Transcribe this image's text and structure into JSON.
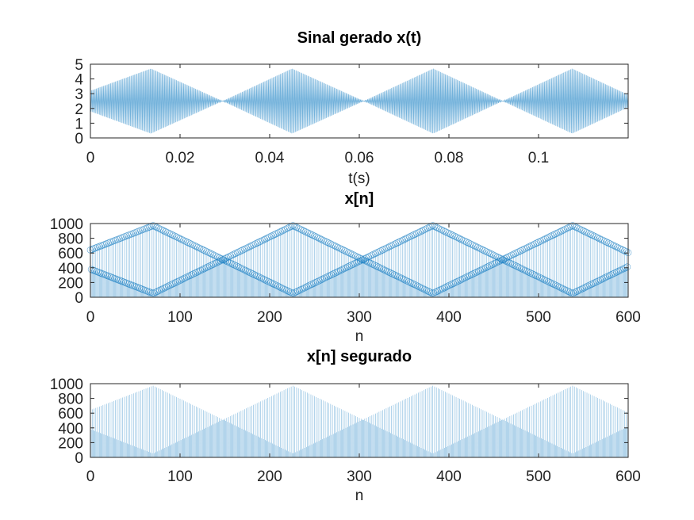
{
  "colors": {
    "signal": "#0072bd",
    "axis": "#262626",
    "background": "#ffffff"
  },
  "chart_data": [
    {
      "type": "line",
      "title": "Sinal gerado x(t)",
      "xlabel": "t(s)",
      "ylabel": "",
      "xlim": [
        0,
        0.12
      ],
      "ylim": [
        0,
        5
      ],
      "grid": false,
      "xticks": [
        0,
        0.02,
        0.04,
        0.06,
        0.08,
        0.1
      ],
      "xtick_labels": [
        "0",
        "0.02",
        "0.04",
        "0.06",
        "0.08",
        "0.1"
      ],
      "yticks": [
        0,
        1,
        2,
        3,
        4,
        5
      ],
      "ytick_labels": [
        "0",
        "1",
        "2",
        "3",
        "4",
        "5"
      ],
      "signal": {
        "description_values": "rapid oscillation around 2.5 with triangular envelope",
        "center": 2.5,
        "envelope_max_amplitude": 2.2,
        "envelope_peaks_x": [
          0.0135,
          0.045,
          0.0765,
          0.1075
        ],
        "envelope_nulls_x": [
          0.0295,
          0.061,
          0.092
        ],
        "start_amplitude": 0.7,
        "x_end": 0.12
      }
    },
    {
      "type": "stem",
      "title": "x[n]",
      "xlabel": "n",
      "ylabel": "",
      "xlim": [
        0,
        600
      ],
      "ylim": [
        0,
        1000
      ],
      "grid": false,
      "xticks": [
        0,
        100,
        200,
        300,
        400,
        500,
        600
      ],
      "xtick_labels": [
        "0",
        "100",
        "200",
        "300",
        "400",
        "500",
        "600"
      ],
      "yticks": [
        0,
        200,
        400,
        600,
        800,
        1000
      ],
      "ytick_labels": [
        "0",
        "200",
        "400",
        "600",
        "800",
        "1000"
      ],
      "signal": {
        "center": 512,
        "envelope_max_amplitude": 460,
        "envelope_peaks_n": [
          70,
          226,
          382,
          538
        ],
        "envelope_nulls_n": [
          148,
          304,
          460
        ],
        "start_amplitude": 130,
        "n_end": 600,
        "markers": "open circles"
      }
    },
    {
      "type": "stem",
      "title": "x[n] segurado",
      "xlabel": "n",
      "ylabel": "",
      "xlim": [
        0,
        600
      ],
      "ylim": [
        0,
        1000
      ],
      "grid": false,
      "xticks": [
        0,
        100,
        200,
        300,
        400,
        500,
        600
      ],
      "xtick_labels": [
        "0",
        "100",
        "200",
        "300",
        "400",
        "500",
        "600"
      ],
      "yticks": [
        0,
        200,
        400,
        600,
        800,
        1000
      ],
      "ytick_labels": [
        "0",
        "200",
        "400",
        "600",
        "800",
        "1000"
      ],
      "signal": {
        "center": 512,
        "envelope_max_amplitude": 460,
        "envelope_peaks_n": [
          70,
          226,
          382,
          538
        ],
        "envelope_nulls_n": [
          148,
          304,
          460
        ],
        "start_amplitude": 130,
        "n_end": 600,
        "markers": "none (held)"
      }
    }
  ]
}
